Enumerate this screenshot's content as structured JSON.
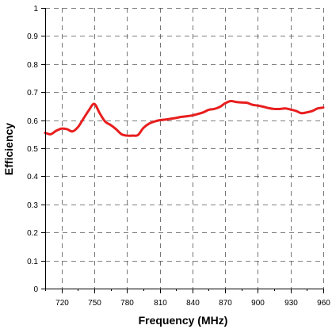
{
  "chart_data": {
    "type": "line",
    "title": "",
    "xlabel": "Frequency (MHz)",
    "ylabel": "Efficiency",
    "xlim": [
      705,
      960
    ],
    "ylim": [
      0,
      1
    ],
    "x_ticks": [
      720,
      750,
      780,
      810,
      840,
      870,
      900,
      930,
      960
    ],
    "y_ticks": [
      0,
      0.1,
      0.2,
      0.3,
      0.4,
      0.5,
      0.6,
      0.7,
      0.8,
      0.9,
      1
    ],
    "y_tick_labels": [
      "0",
      "0.1",
      "0.2",
      "0.3",
      "0.4",
      "0.5",
      "0.6",
      "0.7",
      "0.8",
      "0.9",
      "1"
    ],
    "x_minor_ticks": [
      705,
      735,
      765,
      795,
      825,
      855,
      885,
      915,
      945
    ],
    "grid": true,
    "grid_style": "dashed",
    "legend": "none",
    "series": [
      {
        "color": "#e81e1e",
        "x": [
          705,
          710,
          715,
          720,
          725,
          730,
          735,
          740,
          745,
          750,
          755,
          760,
          765,
          770,
          775,
          780,
          785,
          790,
          795,
          800,
          805,
          810,
          815,
          820,
          825,
          830,
          835,
          840,
          845,
          850,
          855,
          860,
          865,
          870,
          875,
          880,
          885,
          890,
          895,
          900,
          905,
          910,
          915,
          920,
          925,
          930,
          935,
          940,
          945,
          950,
          955,
          960
        ],
        "y": [
          0.555,
          0.55,
          0.562,
          0.57,
          0.568,
          0.56,
          0.575,
          0.605,
          0.635,
          0.658,
          0.625,
          0.595,
          0.583,
          0.568,
          0.55,
          0.545,
          0.545,
          0.547,
          0.572,
          0.587,
          0.595,
          0.6,
          0.602,
          0.605,
          0.608,
          0.612,
          0.614,
          0.617,
          0.622,
          0.628,
          0.637,
          0.64,
          0.647,
          0.66,
          0.668,
          0.665,
          0.663,
          0.662,
          0.655,
          0.652,
          0.648,
          0.643,
          0.64,
          0.64,
          0.642,
          0.638,
          0.633,
          0.625,
          0.628,
          0.633,
          0.642,
          0.645
        ]
      }
    ]
  }
}
